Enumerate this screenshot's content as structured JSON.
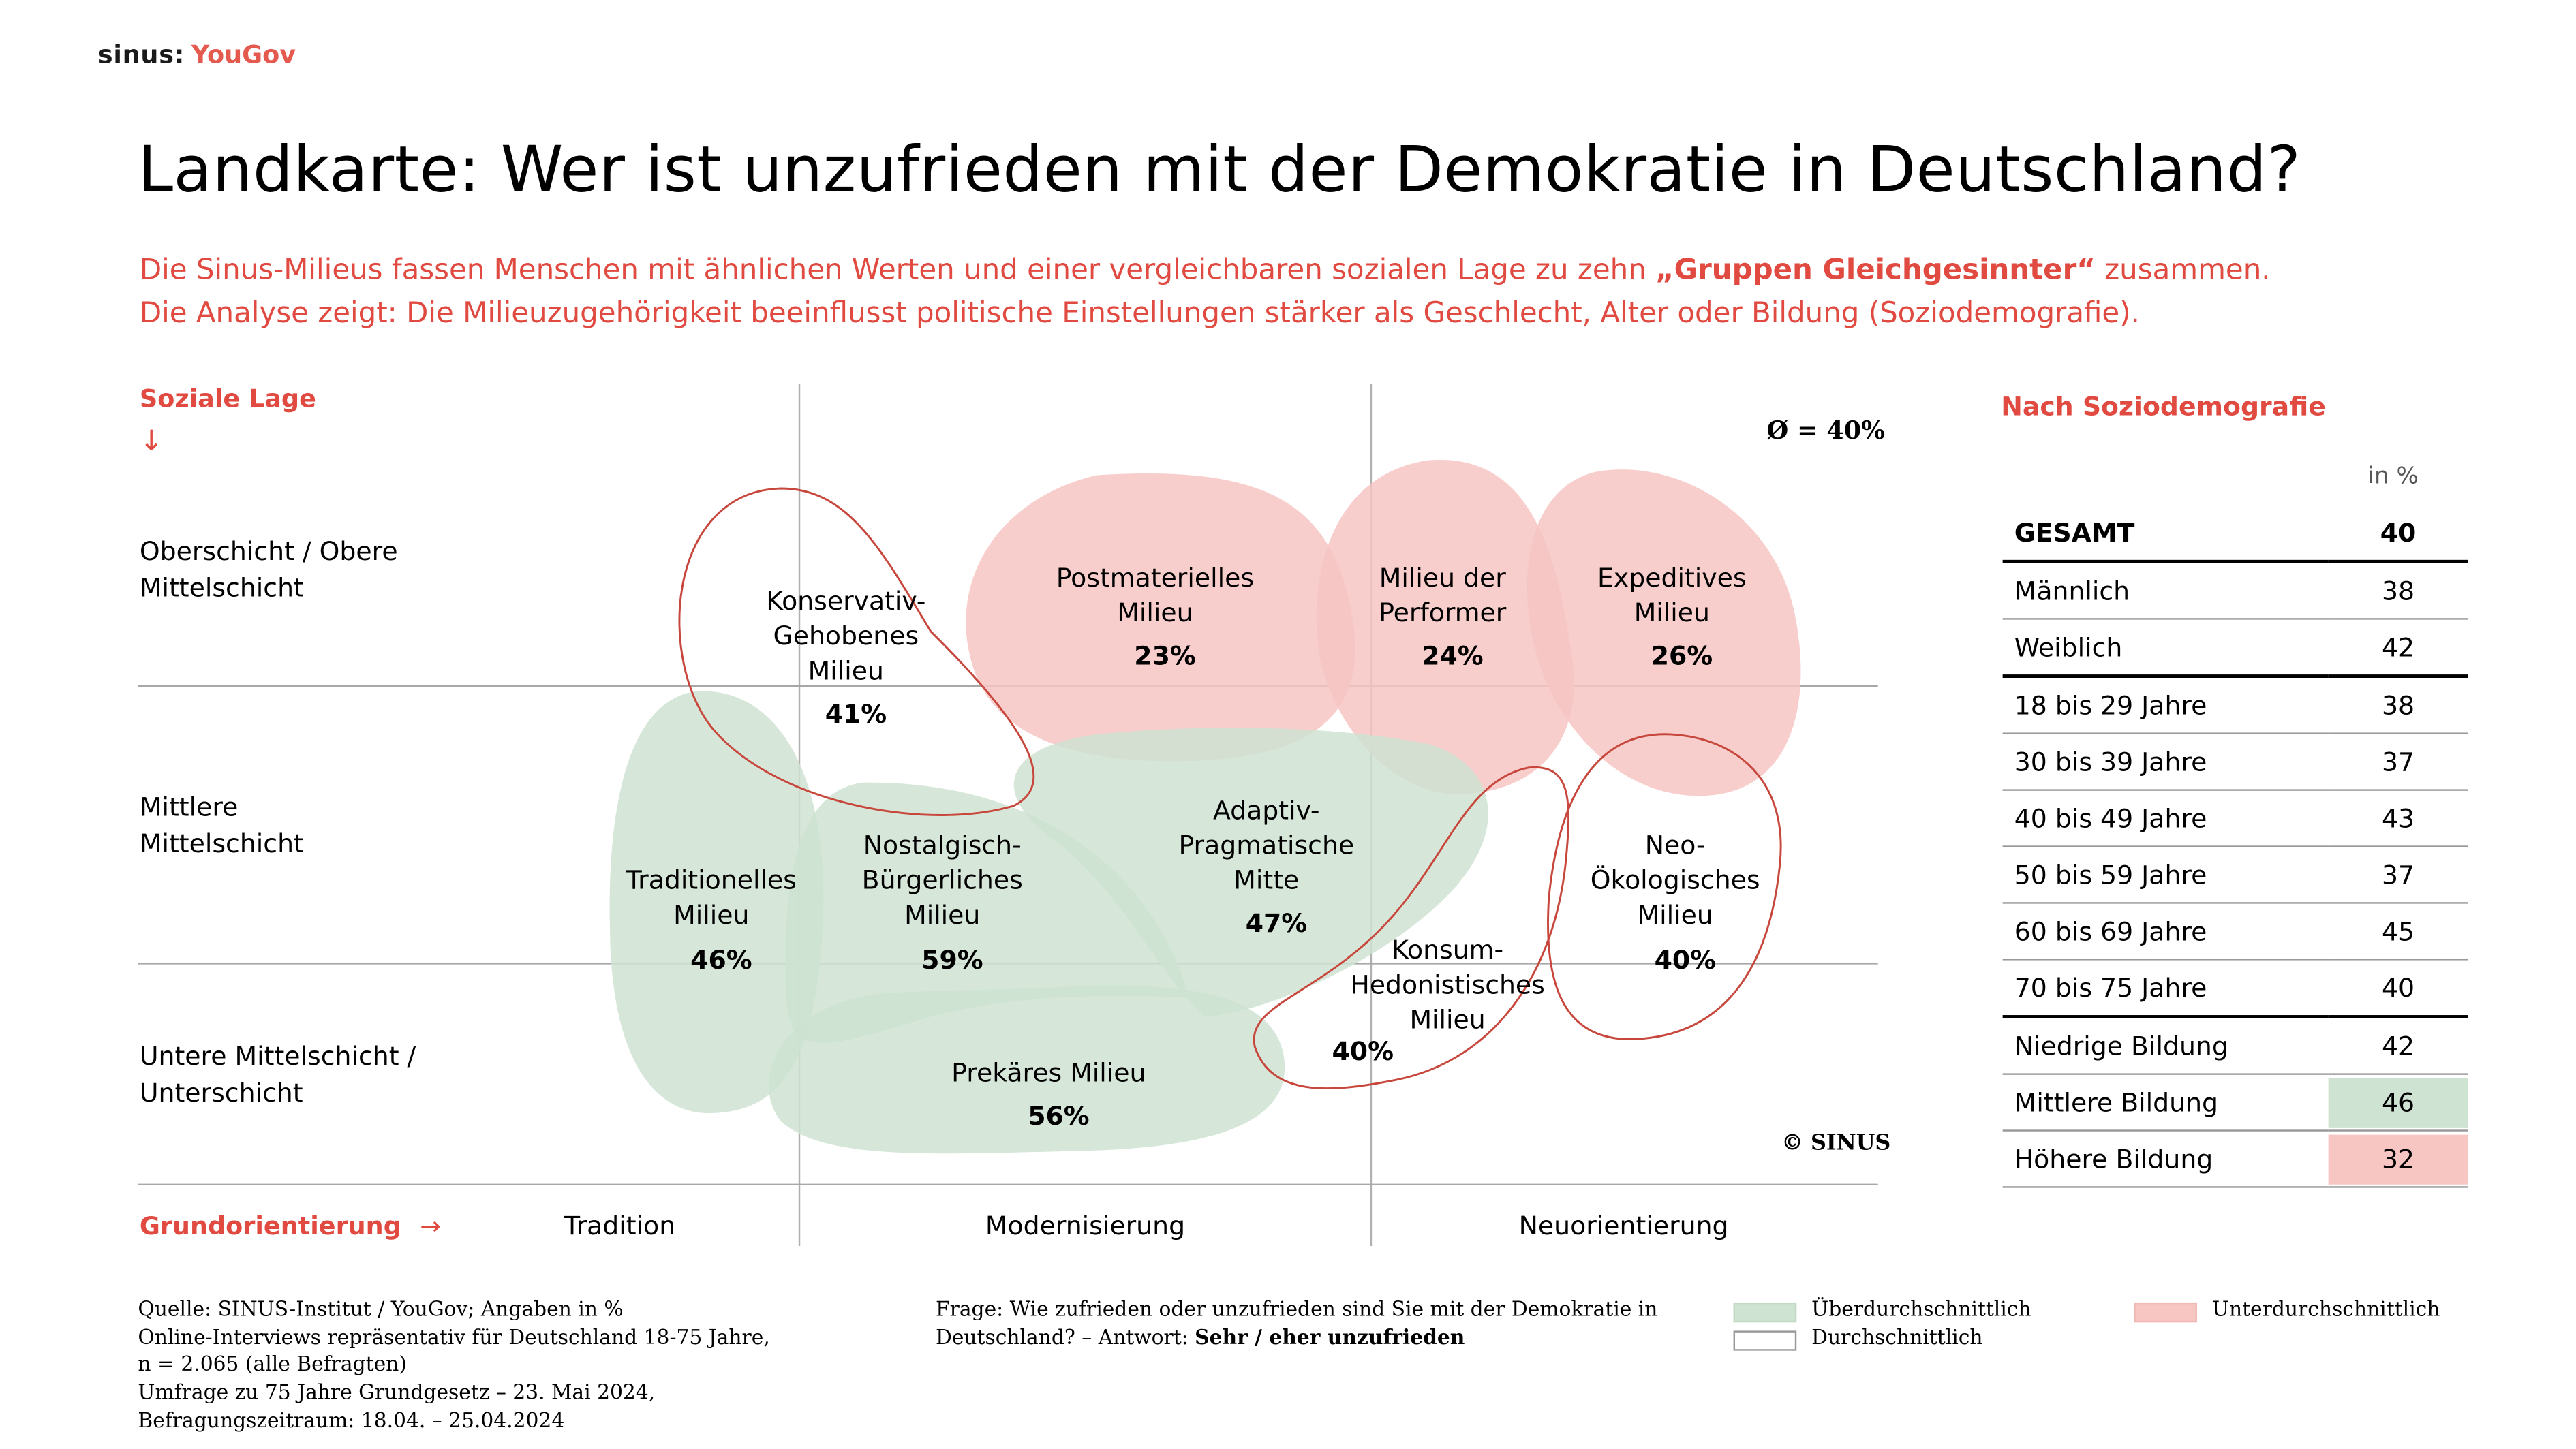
{
  "logo": {
    "part1": "sinus:",
    "part2": "YouGov"
  },
  "title": "Landkarte: Wer ist unzufrieden mit der Demokratie in Deutschland?",
  "subtitle": {
    "line1_pre": "Die Sinus-Milieus fassen Menschen mit ähnlichen Werten und einer vergleichbaren sozialen Lage zu zehn ",
    "line1_bold": "„Gruppen Gleichgesinnter“",
    "line1_post": " zusammen.",
    "line2": "Die Analyse zeigt: Die Milieuzugehörigkeit beeinflusst politische Einstellungen stärker als Geschlecht, Alter oder Bildung (Soziodemografie)."
  },
  "colors": {
    "accent": "#e04a40",
    "above_average": "#cfe3d2",
    "below_average": "#f7c6c3",
    "average_outline": "#c8473d"
  },
  "chart_data": {
    "type": "positioning-map",
    "title": "Landkarte: Wer ist unzufrieden mit der Demokratie in Deutschland?",
    "ylabel": "Soziale Lage",
    "xlabel": "Grundorientierung",
    "y_arrow": "↓",
    "x_arrow": "→",
    "y_categories": [
      "Oberschicht / Obere Mittelschicht",
      "Mittlere Mittelschicht",
      "Untere Mittelschicht / Unterschicht"
    ],
    "x_categories": [
      "Tradition",
      "Modernisierung",
      "Neuorientierung"
    ],
    "average_label": "Ø = 40%",
    "average": 40,
    "copyright": "© SINUS",
    "milieus": [
      {
        "name": "Konservativ-Gehobenes Milieu",
        "lines": [
          "Konservativ-",
          "Gehobenes",
          "Milieu"
        ],
        "value": 41,
        "value_label": "41%",
        "category": "average"
      },
      {
        "name": "Postmaterielles Milieu",
        "lines": [
          "Postmaterielles",
          "Milieu"
        ],
        "value": 23,
        "value_label": "23%",
        "category": "below"
      },
      {
        "name": "Milieu der Performer",
        "lines": [
          "Milieu der",
          "Performer"
        ],
        "value": 24,
        "value_label": "24%",
        "category": "below"
      },
      {
        "name": "Expeditives Milieu",
        "lines": [
          "Expeditives",
          "Milieu"
        ],
        "value": 26,
        "value_label": "26%",
        "category": "below"
      },
      {
        "name": "Traditionelles Milieu",
        "lines": [
          "Traditionelles",
          "Milieu"
        ],
        "value": 46,
        "value_label": "46%",
        "category": "above"
      },
      {
        "name": "Nostalgisch-Bürgerliches Milieu",
        "lines": [
          "Nostalgisch-",
          "Bürgerliches",
          "Milieu"
        ],
        "value": 59,
        "value_label": "59%",
        "category": "above"
      },
      {
        "name": "Adaptiv-Pragmatische Mitte",
        "lines": [
          "Adaptiv-",
          "Pragmatische",
          "Mitte"
        ],
        "value": 47,
        "value_label": "47%",
        "category": "above"
      },
      {
        "name": "Konsum-Hedonistisches Milieu",
        "lines": [
          "Konsum-",
          "Hedonistisches",
          "Milieu"
        ],
        "value": 40,
        "value_label": "40%",
        "category": "average"
      },
      {
        "name": "Neo-Ökologisches Milieu",
        "lines": [
          "Neo-",
          "Ökologisches",
          "Milieu"
        ],
        "value": 40,
        "value_label": "40%",
        "category": "average"
      },
      {
        "name": "Prekäres Milieu",
        "lines": [
          "Prekäres Milieu"
        ],
        "value": 56,
        "value_label": "56%",
        "category": "above"
      }
    ]
  },
  "table": {
    "title": "Nach Soziodemografie",
    "unit": "in %",
    "rows": [
      {
        "label": "GESAMT",
        "value": "40",
        "highlight": "none"
      },
      {
        "label": "Männlich",
        "value": "38",
        "highlight": "none"
      },
      {
        "label": "Weiblich",
        "value": "42",
        "highlight": "none"
      },
      {
        "label": "18 bis 29 Jahre",
        "value": "38",
        "highlight": "none"
      },
      {
        "label": "30 bis 39 Jahre",
        "value": "37",
        "highlight": "none"
      },
      {
        "label": "40 bis 49 Jahre",
        "value": "43",
        "highlight": "none"
      },
      {
        "label": "50 bis 59 Jahre",
        "value": "37",
        "highlight": "none"
      },
      {
        "label": "60 bis 69 Jahre",
        "value": "45",
        "highlight": "none"
      },
      {
        "label": "70 bis 75 Jahre",
        "value": "40",
        "highlight": "none"
      },
      {
        "label": "Niedrige Bildung",
        "value": "42",
        "highlight": "none"
      },
      {
        "label": "Mittlere Bildung",
        "value": "46",
        "highlight": "above"
      },
      {
        "label": "Höhere Bildung",
        "value": "32",
        "highlight": "below"
      }
    ]
  },
  "footer": {
    "source_lines": [
      "Quelle: SINUS-Institut / YouGov; Angaben in %",
      "Online-Interviews repräsentativ für Deutschland 18-75 Jahre,",
      "n = 2.065 (alle Befragten)",
      "Umfrage zu 75 Jahre Grundgesetz – 23. Mai 2024,",
      "Befragungszeitraum: 18.04. – 25.04.2024"
    ],
    "question_line1": "Frage: Wie zufrieden oder unzufrieden sind Sie mit der Demokratie in",
    "question_line2_pre": "Deutschland? – Antwort: ",
    "question_line2_bold": "Sehr / eher unzufrieden"
  },
  "legend": {
    "above": "Überdurchschnittlich",
    "average": "Durchschnittlich",
    "below": "Unterdurchschnittlich"
  }
}
